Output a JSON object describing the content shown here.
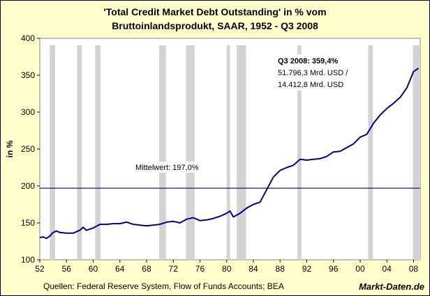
{
  "chart_data": {
    "type": "line",
    "title": "'Total Credit Market Debt Outstanding' in % vom",
    "subtitle": "Bruttoinlandsprodukt, SAAR, 1952 - Q3 2008",
    "ylabel": "in %",
    "xlim": [
      1952,
      2009
    ],
    "ylim": [
      100,
      400
    ],
    "yticks": [
      100,
      150,
      200,
      250,
      300,
      350,
      400
    ],
    "xticks": [
      52,
      56,
      60,
      64,
      68,
      72,
      76,
      80,
      84,
      88,
      92,
      96,
      "00",
      "04",
      "08"
    ],
    "grid": false,
    "series": [
      {
        "name": "",
        "color": "#000080",
        "x": [
          1952,
          1952.5,
          1953,
          1953.5,
          1954,
          1954.5,
          1955,
          1956,
          1957,
          1958,
          1958.5,
          1959,
          1960,
          1961,
          1962,
          1963,
          1964,
          1965,
          1966,
          1967,
          1968,
          1969,
          1970,
          1971,
          1972,
          1973,
          1974,
          1975,
          1976,
          1977,
          1978,
          1979,
          1980,
          1980.5,
          1981,
          1982,
          1983,
          1984,
          1985,
          1986,
          1987,
          1988,
          1989,
          1990,
          1991,
          1992,
          1993,
          1994,
          1995,
          1996,
          1997,
          1998,
          1999,
          2000,
          2001,
          2002,
          2003,
          2004,
          2005,
          2006,
          2007,
          2008,
          2008.75
        ],
        "values": [
          130,
          131,
          129,
          132,
          137,
          139,
          137,
          136,
          136,
          140,
          144,
          140,
          143,
          148,
          148,
          149,
          149,
          151,
          148,
          147,
          146,
          147,
          148,
          151,
          152,
          150,
          155,
          157,
          153,
          154,
          156,
          159,
          163,
          166,
          158,
          163,
          170,
          175,
          178,
          195,
          212,
          221,
          225,
          228,
          236,
          235,
          236,
          237,
          240,
          246,
          247,
          252,
          257,
          266,
          270,
          285,
          296,
          305,
          312,
          320,
          333,
          355,
          359.4
        ]
      },
      {
        "name": "Mittelwert",
        "type": "hline",
        "color": "#000080",
        "value": 197.0
      }
    ],
    "recessions": [
      [
        1953.5,
        1954.3
      ],
      [
        1957.6,
        1958.3
      ],
      [
        1960.3,
        1961.1
      ],
      [
        1969.9,
        1970.9
      ],
      [
        1973.9,
        1975.2
      ],
      [
        1980.0,
        1980.5
      ],
      [
        1981.5,
        1982.9
      ],
      [
        1990.6,
        1991.2
      ],
      [
        2001.2,
        2001.9
      ],
      [
        2007.9,
        2009.0
      ]
    ],
    "annotations": {
      "mean_label": "Mittelwert: 197,0%",
      "latest_label": "Q3 2008: 359,4%",
      "latest_line2": "51.796,3 Mrd. USD /",
      "latest_line3": "14.412,8 Mrd. USD"
    }
  },
  "footer": {
    "source": "Quellen: Federal Reserve System, Flow of Funds Accounts; BEA",
    "brand": "Markt-Daten.de"
  },
  "colors": {
    "background": "#ffffcc",
    "plot_area": "#ffffff",
    "recession_band": "#d3d3d3",
    "series": "#000080"
  }
}
